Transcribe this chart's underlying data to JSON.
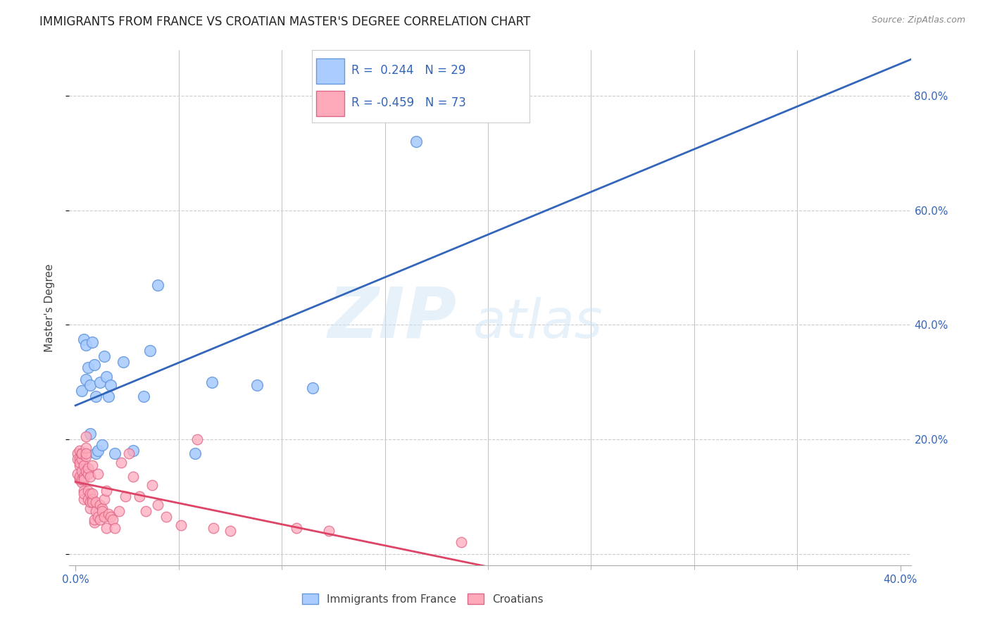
{
  "title": "IMMIGRANTS FROM FRANCE VS CROATIAN MASTER'S DEGREE CORRELATION CHART",
  "source": "Source: ZipAtlas.com",
  "ylabel": "Master's Degree",
  "r_france": 0.244,
  "n_france": 29,
  "r_croatian": -0.459,
  "n_croatian": 73,
  "xlim": [
    -0.003,
    0.405
  ],
  "ylim": [
    -0.02,
    0.88
  ],
  "xticks": [
    0.0,
    0.4
  ],
  "xtick_labels": [
    "0.0%",
    "40.0%"
  ],
  "yticks": [
    0.0,
    0.2,
    0.4,
    0.6,
    0.8
  ],
  "ytick_labels_right": [
    "",
    "20.0%",
    "40.0%",
    "60.0%",
    "80.0%"
  ],
  "france_color": "#aaccff",
  "france_edge": "#6699dd",
  "croatian_color": "#ffaabb",
  "croatian_edge": "#dd6688",
  "line_france_color": "#3366bb",
  "line_croatian_color": "#dd4466",
  "france_scatter_x": [
    0.003,
    0.004,
    0.005,
    0.005,
    0.006,
    0.007,
    0.007,
    0.008,
    0.009,
    0.01,
    0.01,
    0.011,
    0.012,
    0.013,
    0.014,
    0.015,
    0.016,
    0.017,
    0.019,
    0.023,
    0.028,
    0.033,
    0.036,
    0.04,
    0.058,
    0.066,
    0.088,
    0.115,
    0.165
  ],
  "france_scatter_y": [
    0.285,
    0.375,
    0.365,
    0.305,
    0.325,
    0.295,
    0.21,
    0.37,
    0.33,
    0.275,
    0.175,
    0.18,
    0.3,
    0.19,
    0.345,
    0.31,
    0.275,
    0.295,
    0.175,
    0.335,
    0.18,
    0.275,
    0.355,
    0.47,
    0.175,
    0.3,
    0.295,
    0.29,
    0.72
  ],
  "croatian_scatter_x": [
    0.001,
    0.001,
    0.001,
    0.002,
    0.002,
    0.002,
    0.002,
    0.002,
    0.002,
    0.003,
    0.003,
    0.003,
    0.003,
    0.003,
    0.003,
    0.004,
    0.004,
    0.004,
    0.004,
    0.004,
    0.004,
    0.005,
    0.005,
    0.005,
    0.005,
    0.005,
    0.006,
    0.006,
    0.006,
    0.006,
    0.007,
    0.007,
    0.007,
    0.007,
    0.008,
    0.008,
    0.008,
    0.008,
    0.009,
    0.009,
    0.01,
    0.01,
    0.011,
    0.011,
    0.012,
    0.012,
    0.013,
    0.013,
    0.014,
    0.014,
    0.015,
    0.015,
    0.016,
    0.017,
    0.018,
    0.019,
    0.021,
    0.022,
    0.024,
    0.026,
    0.028,
    0.031,
    0.034,
    0.037,
    0.04,
    0.044,
    0.051,
    0.059,
    0.067,
    0.075,
    0.107,
    0.123,
    0.187
  ],
  "croatian_scatter_y": [
    0.175,
    0.14,
    0.165,
    0.13,
    0.155,
    0.18,
    0.165,
    0.135,
    0.16,
    0.125,
    0.145,
    0.165,
    0.175,
    0.13,
    0.175,
    0.11,
    0.135,
    0.155,
    0.095,
    0.13,
    0.105,
    0.17,
    0.205,
    0.185,
    0.145,
    0.175,
    0.14,
    0.15,
    0.11,
    0.095,
    0.08,
    0.105,
    0.09,
    0.135,
    0.095,
    0.09,
    0.105,
    0.155,
    0.055,
    0.06,
    0.075,
    0.09,
    0.14,
    0.065,
    0.06,
    0.085,
    0.08,
    0.075,
    0.065,
    0.095,
    0.045,
    0.11,
    0.07,
    0.065,
    0.06,
    0.045,
    0.075,
    0.16,
    0.1,
    0.175,
    0.135,
    0.1,
    0.075,
    0.12,
    0.085,
    0.065,
    0.05,
    0.2,
    0.045,
    0.04,
    0.045,
    0.04,
    0.02
  ],
  "watermark_zip": "ZIP",
  "watermark_atlas": "atlas",
  "background_color": "#FFFFFF",
  "grid_color": "#cccccc",
  "minor_tick_x": [
    0.05,
    0.1,
    0.15,
    0.2,
    0.25,
    0.3,
    0.35
  ],
  "title_fontsize": 12,
  "axis_fontsize": 11,
  "tick_fontsize": 11
}
